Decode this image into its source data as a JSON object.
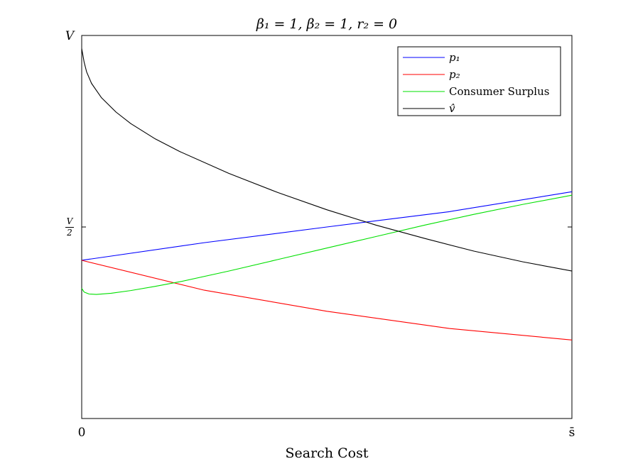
{
  "chart_data": {
    "type": "line",
    "title": "β₁ = 1, β₂ = 1, r₂ = 0",
    "xlabel": "Search Cost",
    "ylabel": "",
    "xlim": [
      0,
      1
    ],
    "ylim": [
      0,
      1
    ],
    "x_ticks": [
      {
        "value": 0,
        "label": "0"
      },
      {
        "value": 1,
        "label": "s̄"
      }
    ],
    "y_ticks": [
      {
        "value": 0.5,
        "label": "V/2"
      },
      {
        "value": 1,
        "label": "V"
      }
    ],
    "grid": false,
    "legend_position": "top-right",
    "series": [
      {
        "name": "p₁",
        "color": "#0000ff",
        "x": [
          0,
          0.25,
          0.5,
          0.75,
          1
        ],
        "y": [
          0.413,
          0.459,
          0.5,
          0.54,
          0.592
        ]
      },
      {
        "name": "p₂",
        "color": "#ff0000",
        "x": [
          0,
          0.25,
          0.5,
          0.75,
          1
        ],
        "y": [
          0.413,
          0.335,
          0.28,
          0.235,
          0.205
        ]
      },
      {
        "name": "Consumer Surplus",
        "color": "#00e000",
        "x": [
          0,
          0.005,
          0.015,
          0.03,
          0.06,
          0.1,
          0.15,
          0.2,
          0.3,
          0.4,
          0.5,
          0.6,
          0.7,
          0.8,
          0.9,
          1
        ],
        "y": [
          0.34,
          0.33,
          0.325,
          0.324,
          0.327,
          0.334,
          0.345,
          0.357,
          0.385,
          0.415,
          0.445,
          0.475,
          0.505,
          0.533,
          0.559,
          0.583
        ]
      },
      {
        "name": "v̂",
        "color": "#000000",
        "x": [
          0,
          0.005,
          0.01,
          0.02,
          0.04,
          0.07,
          0.1,
          0.15,
          0.2,
          0.3,
          0.4,
          0.5,
          0.6,
          0.7,
          0.8,
          0.9,
          1
        ],
        "y": [
          0.966,
          0.93,
          0.905,
          0.875,
          0.838,
          0.8,
          0.77,
          0.73,
          0.697,
          0.64,
          0.59,
          0.545,
          0.505,
          0.47,
          0.437,
          0.409,
          0.385
        ]
      }
    ]
  }
}
